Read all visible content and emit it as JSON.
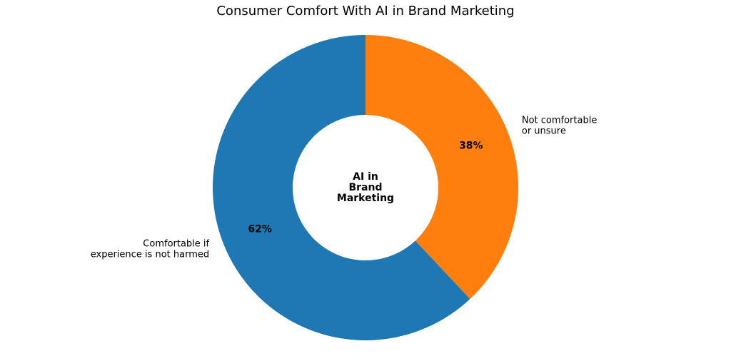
{
  "chart_data": {
    "type": "donut",
    "title": "Consumer Comfort With AI in Brand Marketing",
    "center_label": "AI in\nBrand\nMarketing",
    "categories": [
      "Comfortable if\nexperience is not harmed",
      "Not comfortable\nor unsure"
    ],
    "values": [
      62,
      38
    ],
    "value_labels": [
      "62%",
      "38%"
    ],
    "colors": [
      "#1f77b4",
      "#ff7f0e"
    ],
    "start_angle": 90,
    "counterclock": true
  }
}
